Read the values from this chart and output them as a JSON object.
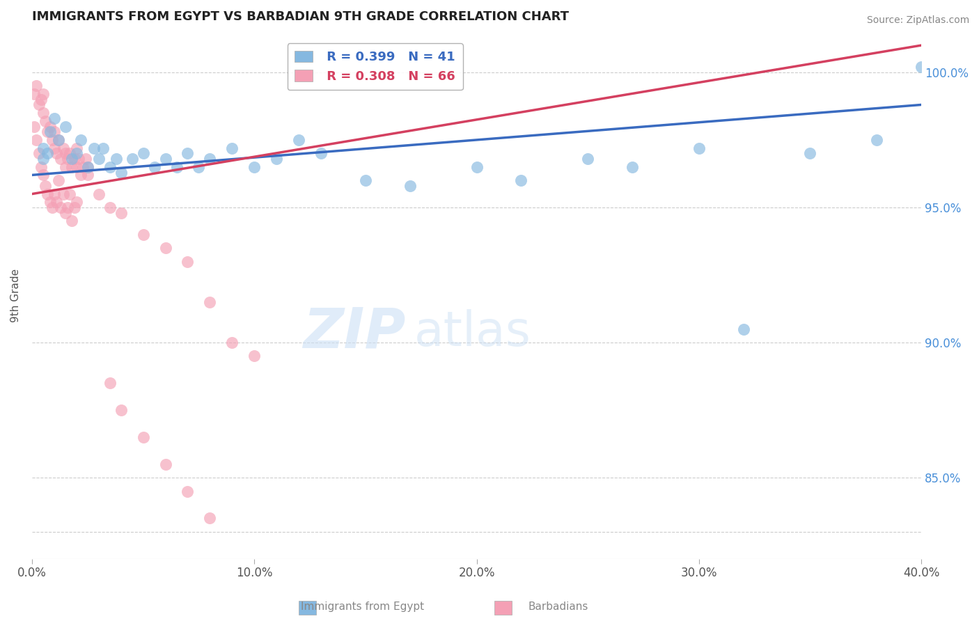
{
  "title": "IMMIGRANTS FROM EGYPT VS BARBADIAN 9TH GRADE CORRELATION CHART",
  "source": "Source: ZipAtlas.com",
  "ylabel": "9th Grade",
  "yticks": [
    83.0,
    85.0,
    90.0,
    95.0,
    100.0
  ],
  "ytick_labels": [
    "",
    "85.0%",
    "90.0%",
    "95.0%",
    "100.0%"
  ],
  "xticks": [
    0.0,
    0.1,
    0.2,
    0.3,
    0.4
  ],
  "xlim": [
    0.0,
    0.4
  ],
  "ylim": [
    82.0,
    101.5
  ],
  "legend_r_blue": "R = 0.399",
  "legend_n_blue": "N = 41",
  "legend_r_pink": "R = 0.308",
  "legend_n_pink": "N = 66",
  "legend_label_blue": "Immigrants from Egypt",
  "legend_label_pink": "Barbadians",
  "watermark_zip": "ZIP",
  "watermark_atlas": "atlas",
  "blue_color": "#85b8e0",
  "pink_color": "#f4a0b5",
  "blue_line_color": "#3a6bc0",
  "pink_line_color": "#d44060",
  "blue_scatter_x": [
    0.005,
    0.008,
    0.01,
    0.012,
    0.015,
    0.018,
    0.02,
    0.022,
    0.025,
    0.028,
    0.03,
    0.032,
    0.035,
    0.038,
    0.04,
    0.045,
    0.05,
    0.055,
    0.06,
    0.065,
    0.07,
    0.075,
    0.08,
    0.09,
    0.1,
    0.11,
    0.12,
    0.13,
    0.15,
    0.17,
    0.2,
    0.22,
    0.25,
    0.27,
    0.3,
    0.32,
    0.35,
    0.38,
    0.4,
    0.005,
    0.007
  ],
  "blue_scatter_y": [
    97.2,
    97.8,
    98.3,
    97.5,
    98.0,
    96.8,
    97.0,
    97.5,
    96.5,
    97.2,
    96.8,
    97.2,
    96.5,
    96.8,
    96.3,
    96.8,
    97.0,
    96.5,
    96.8,
    96.5,
    97.0,
    96.5,
    96.8,
    97.2,
    96.5,
    96.8,
    97.5,
    97.0,
    96.0,
    95.8,
    96.5,
    96.0,
    96.8,
    96.5,
    97.2,
    90.5,
    97.0,
    97.5,
    100.2,
    96.8,
    97.0
  ],
  "pink_scatter_x": [
    0.001,
    0.002,
    0.003,
    0.004,
    0.005,
    0.005,
    0.006,
    0.007,
    0.008,
    0.009,
    0.01,
    0.01,
    0.011,
    0.012,
    0.013,
    0.014,
    0.015,
    0.015,
    0.016,
    0.017,
    0.018,
    0.019,
    0.02,
    0.02,
    0.021,
    0.022,
    0.023,
    0.024,
    0.025,
    0.001,
    0.002,
    0.003,
    0.004,
    0.005,
    0.006,
    0.007,
    0.008,
    0.009,
    0.01,
    0.011,
    0.012,
    0.013,
    0.014,
    0.015,
    0.016,
    0.017,
    0.018,
    0.019,
    0.02,
    0.025,
    0.03,
    0.035,
    0.04,
    0.05,
    0.06,
    0.07,
    0.08,
    0.09,
    0.1,
    0.035,
    0.04,
    0.05,
    0.06,
    0.07,
    0.08
  ],
  "pink_scatter_y": [
    99.2,
    99.5,
    98.8,
    99.0,
    98.5,
    99.2,
    98.2,
    97.8,
    98.0,
    97.5,
    97.8,
    97.2,
    97.0,
    97.5,
    96.8,
    97.2,
    97.0,
    96.5,
    96.8,
    97.0,
    96.5,
    96.8,
    97.2,
    96.5,
    96.8,
    96.2,
    96.5,
    96.8,
    96.5,
    98.0,
    97.5,
    97.0,
    96.5,
    96.2,
    95.8,
    95.5,
    95.2,
    95.0,
    95.5,
    95.2,
    96.0,
    95.0,
    95.5,
    94.8,
    95.0,
    95.5,
    94.5,
    95.0,
    95.2,
    96.2,
    95.5,
    95.0,
    94.8,
    94.0,
    93.5,
    93.0,
    91.5,
    90.0,
    89.5,
    88.5,
    87.5,
    86.5,
    85.5,
    84.5,
    83.5
  ],
  "blue_trend_x": [
    0.0,
    0.4
  ],
  "blue_trend_y": [
    96.2,
    98.8
  ],
  "pink_trend_x": [
    0.0,
    0.4
  ],
  "pink_trend_y": [
    95.5,
    101.0
  ]
}
